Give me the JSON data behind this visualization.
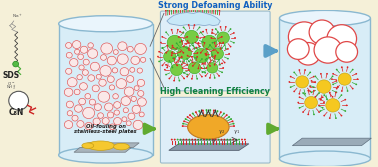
{
  "bg_color": "#f5f0d8",
  "foam_title": "Strong Defoaming Ability",
  "clean_title": "High Cleaning Efficiency",
  "sds_label": "SDS",
  "c8n_label": "C₈N",
  "cyl_body": "#d8edf7",
  "cyl_rim": "#8ab8d0",
  "oil_face": "#fcd0c8",
  "oil_edge": "#e05050",
  "foam_box_face": "#ddeef8",
  "clean_box_face": "#ddeef8",
  "blue_arrow": "#5ba0c8",
  "green_arrow": "#60aa30"
}
